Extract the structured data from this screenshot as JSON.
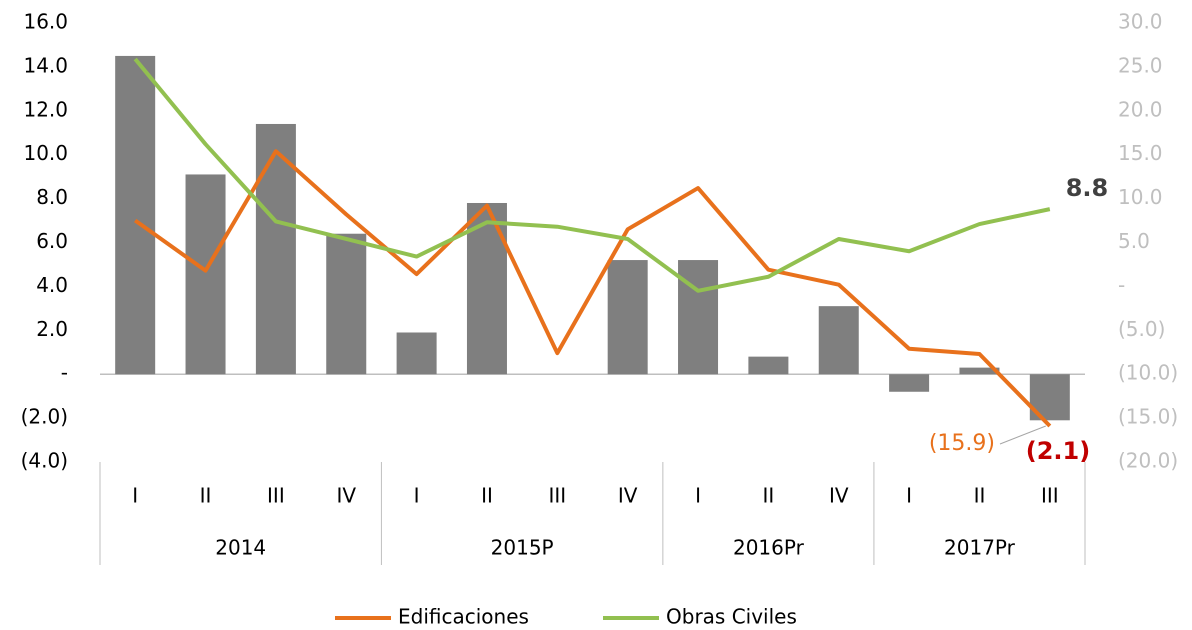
{
  "chart_data": {
    "type": "bar-line",
    "category_groups": [
      {
        "name": "2014",
        "categories": [
          "I",
          "II",
          "III",
          "IV"
        ]
      },
      {
        "name": "2015P",
        "categories": [
          "I",
          "II",
          "III",
          "IV"
        ]
      },
      {
        "name": "2016Pr",
        "categories": [
          "I",
          "II",
          "IV"
        ]
      },
      {
        "name": "2017Pr",
        "categories": [
          "I",
          "II",
          "III"
        ]
      }
    ],
    "ylim": [
      -4,
      16
    ],
    "yticks": [
      {
        "value": -4,
        "label": "(4.0)"
      },
      {
        "value": -2,
        "label": "(2.0)"
      },
      {
        "value": 0,
        "label": "-"
      },
      {
        "value": 2,
        "label": "2.0"
      },
      {
        "value": 4,
        "label": "4.0"
      },
      {
        "value": 6,
        "label": "6.0"
      },
      {
        "value": 8,
        "label": "8.0"
      },
      {
        "value": 10,
        "label": "10.0"
      },
      {
        "value": 12,
        "label": "12.0"
      },
      {
        "value": 14,
        "label": "14.0"
      },
      {
        "value": 16,
        "label": "16.0"
      }
    ],
    "y2lim": [
      -20,
      30
    ],
    "y2ticks": [
      {
        "value": -20,
        "label": "(20.0)"
      },
      {
        "value": -15,
        "label": "(15.0)"
      },
      {
        "value": -10,
        "label": "(10.0)"
      },
      {
        "value": -5,
        "label": "(5.0)"
      },
      {
        "value": 0,
        "label": "-"
      },
      {
        "value": 5,
        "label": "5.0"
      },
      {
        "value": 10,
        "label": "10.0"
      },
      {
        "value": 15,
        "label": "15.0"
      },
      {
        "value": 20,
        "label": "20.0"
      },
      {
        "value": 25,
        "label": "25.0"
      },
      {
        "value": 30,
        "label": "30.0"
      }
    ],
    "series": [
      {
        "kind": "bar",
        "color": "#7f7f7f",
        "values": [
          14.5,
          9.1,
          11.4,
          6.4,
          1.9,
          7.8,
          0,
          5.2,
          5.2,
          0.8,
          3.1,
          -0.8,
          0.3,
          -2.1
        ],
        "value_labels": [
          null,
          null,
          null,
          null,
          null,
          null,
          null,
          null,
          null,
          null,
          null,
          null,
          null,
          "(2.1)"
        ]
      },
      {
        "kind": "line",
        "name": "Edificaciones",
        "axis": "y2",
        "color": "#e8711c",
        "values": [
          7.5,
          1.8,
          15.4,
          8.2,
          1.4,
          9.2,
          -7.6,
          6.5,
          11.2,
          1.9,
          0.2,
          -7.1,
          -7.7,
          -15.9
        ],
        "value_labels": [
          null,
          null,
          null,
          null,
          null,
          null,
          null,
          null,
          null,
          null,
          null,
          null,
          null,
          "(15.9)"
        ]
      },
      {
        "kind": "line",
        "name": "Obras Civiles",
        "axis": "y2",
        "color": "#92c050",
        "values": [
          25.9,
          16.2,
          7.4,
          5.4,
          3.4,
          7.3,
          6.8,
          5.4,
          -0.5,
          1.1,
          5.4,
          4.0,
          7.1,
          8.8
        ],
        "value_labels": [
          null,
          null,
          null,
          null,
          null,
          null,
          null,
          null,
          null,
          null,
          null,
          null,
          null,
          "8.8"
        ]
      }
    ]
  }
}
